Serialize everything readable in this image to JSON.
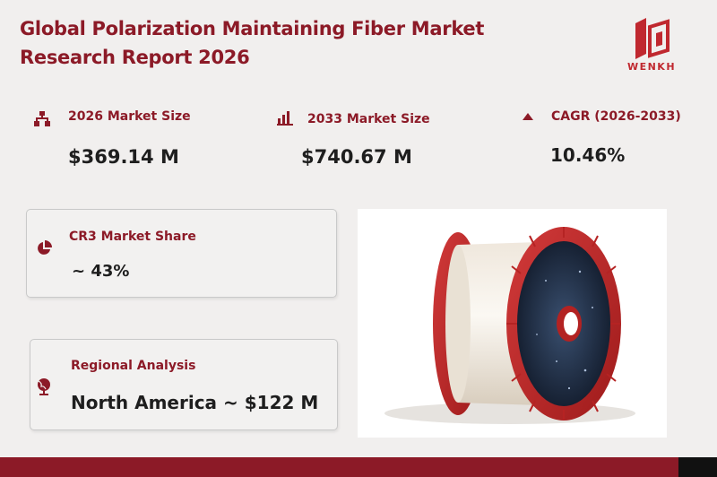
{
  "header": {
    "title_line1": "Global Polarization Maintaining Fiber Market",
    "title_line2": "Research Report 2026"
  },
  "logo": {
    "text": "WENKH",
    "icon": "wenkh-logo-mark",
    "color": "#c0282f"
  },
  "stats": [
    {
      "icon": "hierarchy-icon",
      "label": "2026 Market Size",
      "value": "$369.14  M"
    },
    {
      "icon": "bar-chart-icon",
      "label": "2033 Market Size",
      "value": "$740.67  M"
    },
    {
      "icon": "triangle-up-icon",
      "label": "CAGR (2026-2033)",
      "value": "10.46%"
    }
  ],
  "cards": {
    "cr3": {
      "icon": "pie-chart-icon",
      "label": "CR3 Market Share",
      "value": "~ 43%"
    },
    "regional": {
      "icon": "globe-icon",
      "label": "Regional Analysis",
      "value": "North America  ~ $122  M"
    }
  },
  "product": {
    "image": "fiber-spool-image"
  },
  "colors": {
    "accent": "#8c1a27",
    "background": "#f1efee",
    "text": "#1e1e1e"
  }
}
